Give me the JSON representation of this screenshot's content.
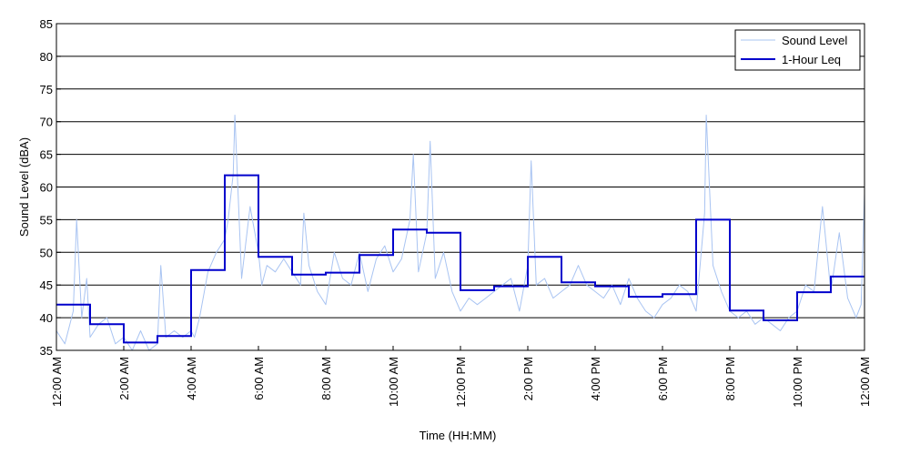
{
  "chart_data": {
    "type": "line",
    "title": "",
    "xlabel": "Time (HH:MM)",
    "ylabel": "Sound Level (dBA)",
    "ylim": [
      35,
      85
    ],
    "yticks": [
      35,
      40,
      45,
      50,
      55,
      60,
      65,
      70,
      75,
      80,
      85
    ],
    "xlim": [
      0,
      24
    ],
    "xtick_hours": [
      0,
      2,
      4,
      6,
      8,
      10,
      12,
      14,
      16,
      18,
      20,
      22,
      24
    ],
    "xtick_labels": [
      "12:00 AM",
      "2:00 AM",
      "4:00 AM",
      "6:00 AM",
      "8:00 AM",
      "10:00 AM",
      "12:00 PM",
      "2:00 PM",
      "4:00 PM",
      "6:00 PM",
      "8:00 PM",
      "10:00 PM",
      "12:00 AM"
    ],
    "grid": "horizontal",
    "legend_position": "top-right",
    "colors": {
      "sound_level": "#a9c4f2",
      "leq": "#0000cc"
    },
    "series": [
      {
        "name": "Sound Level",
        "style": "thin light-blue line",
        "x": [
          0,
          0.25,
          0.5,
          0.6,
          0.75,
          0.9,
          1.0,
          1.25,
          1.5,
          1.75,
          2.0,
          2.25,
          2.5,
          2.75,
          3.0,
          3.1,
          3.25,
          3.5,
          3.75,
          4.0,
          4.1,
          4.25,
          4.5,
          4.75,
          5.0,
          5.1,
          5.25,
          5.3,
          5.5,
          5.75,
          6.0,
          6.1,
          6.25,
          6.5,
          6.75,
          7.0,
          7.25,
          7.35,
          7.5,
          7.75,
          8.0,
          8.25,
          8.5,
          8.75,
          9.0,
          9.25,
          9.5,
          9.75,
          10.0,
          10.25,
          10.5,
          10.6,
          10.75,
          11.0,
          11.1,
          11.25,
          11.5,
          11.75,
          12.0,
          12.25,
          12.5,
          12.75,
          13.0,
          13.25,
          13.5,
          13.75,
          14.0,
          14.1,
          14.25,
          14.5,
          14.75,
          15.0,
          15.25,
          15.5,
          15.75,
          16.0,
          16.25,
          16.5,
          16.75,
          17.0,
          17.25,
          17.5,
          17.75,
          18.0,
          18.25,
          18.5,
          18.75,
          19.0,
          19.25,
          19.3,
          19.5,
          19.75,
          20.0,
          20.25,
          20.5,
          20.75,
          21.0,
          21.25,
          21.5,
          21.75,
          22.0,
          22.25,
          22.5,
          22.75,
          23.0,
          23.25,
          23.5,
          23.75,
          23.9,
          24.0
        ],
        "y": [
          38,
          36,
          41,
          55,
          40,
          46,
          37,
          39,
          40,
          36,
          37,
          35,
          38,
          35,
          36,
          48,
          37,
          38,
          37,
          38,
          37,
          40,
          47,
          50,
          52,
          55,
          62,
          71,
          46,
          57,
          50,
          45,
          48,
          47,
          49,
          47,
          45,
          56,
          48,
          44,
          42,
          50,
          46,
          45,
          50,
          44,
          49,
          51,
          47,
          49,
          55,
          65,
          47,
          53,
          67,
          46,
          50,
          44,
          41,
          43,
          42,
          43,
          44,
          45,
          46,
          41,
          48,
          64,
          45,
          46,
          43,
          44,
          45,
          48,
          45,
          44,
          43,
          45,
          42,
          46,
          43,
          41,
          40,
          42,
          43,
          45,
          44,
          41,
          56,
          71,
          48,
          44,
          41,
          40,
          41,
          39,
          40,
          39,
          38,
          40,
          41,
          45,
          44,
          57,
          44,
          53,
          43,
          40,
          42,
          59
        ]
      },
      {
        "name": "1-Hour Leq",
        "style": "dark-blue step line",
        "hour_start": [
          0,
          1,
          2,
          3,
          4,
          5,
          6,
          7,
          8,
          9,
          10,
          11,
          12,
          13,
          14,
          15,
          16,
          17,
          18,
          19,
          20,
          21,
          22,
          23
        ],
        "values": [
          42.0,
          39.0,
          36.2,
          37.2,
          47.3,
          61.8,
          49.3,
          46.6,
          46.9,
          49.6,
          53.5,
          53.0,
          44.2,
          44.8,
          49.3,
          45.4,
          44.8,
          43.2,
          43.6,
          55.0,
          41.1,
          39.6,
          43.9,
          46.3
        ]
      }
    ]
  }
}
